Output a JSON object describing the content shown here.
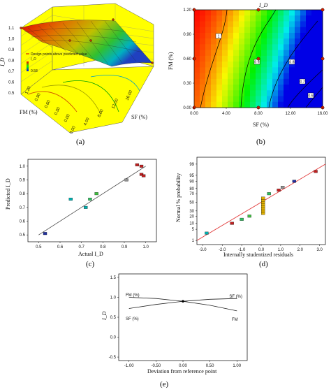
{
  "figure": {
    "captions": [
      "(a)",
      "(b)",
      "(c)",
      "(d)",
      "(e)"
    ]
  },
  "chart_data": [
    {
      "panel": "a",
      "type": "surface3d",
      "zlabel": "I_D",
      "xlabel": "SF (%)",
      "ylabel": "FM (%)",
      "x_ticks": [
        "0.00",
        "4.00",
        "8.00",
        "12.00",
        "16.00"
      ],
      "y_ticks": [
        "0.00",
        "0.30",
        "0.60",
        "0.90",
        "1.20"
      ],
      "z_ticks": [
        "0.5",
        "0.6",
        "0.7",
        "0.8",
        "0.9",
        "1.0",
        "1.1"
      ],
      "legend": [
        "Design points above predicted value",
        "I_D",
        "0.58"
      ],
      "colormap": [
        "#ff0000",
        "#ffa500",
        "#ffff00",
        "#00ff00",
        "#00ffff",
        "#0000ff"
      ]
    },
    {
      "panel": "b",
      "type": "heatmap",
      "title": "I_D",
      "xlabel": "SF (%)",
      "ylabel": "FM (%)",
      "x_ticks": [
        "0.00",
        "4.00",
        "8.00",
        "12.00",
        "16.00"
      ],
      "y_ticks": [
        "0.00",
        "0.30",
        "0.60",
        "0.90",
        "1.20"
      ],
      "xlim": [
        0,
        16
      ],
      "ylim": [
        0,
        1.2
      ],
      "contour_labels": [
        "1",
        "0.9",
        "0.8",
        "0.7",
        "0.6"
      ],
      "design_points": [
        {
          "x": 0,
          "y": 1.2
        },
        {
          "x": 8,
          "y": 1.2
        },
        {
          "x": 16,
          "y": 1.2
        },
        {
          "x": 0,
          "y": 0.6
        },
        {
          "x": 8,
          "y": 0.6
        },
        {
          "x": 16,
          "y": 0.6
        },
        {
          "x": 0,
          "y": 0
        },
        {
          "x": 8,
          "y": 0
        },
        {
          "x": 16,
          "y": 0
        }
      ]
    },
    {
      "panel": "c",
      "type": "scatter",
      "xlabel": "Actual I_D",
      "ylabel": "Predicted I_D",
      "x_ticks": [
        "0.5",
        "0.6",
        "0.7",
        "0.8",
        "0.9",
        "1.0"
      ],
      "y_ticks": [
        "0.5",
        "0.6",
        "0.7",
        "0.8",
        "0.9",
        "1.0"
      ],
      "xlim": [
        0.45,
        1.05
      ],
      "ylim": [
        0.45,
        1.05
      ],
      "points": [
        {
          "x": 0.53,
          "y": 0.51,
          "color": "#2030a0"
        },
        {
          "x": 0.65,
          "y": 0.76,
          "color": "#00b0b0"
        },
        {
          "x": 0.72,
          "y": 0.7,
          "color": "#00b0b0"
        },
        {
          "x": 0.74,
          "y": 0.76,
          "color": "#30c060"
        },
        {
          "x": 0.77,
          "y": 0.8,
          "color": "#40c040"
        },
        {
          "x": 0.91,
          "y": 0.9,
          "color": "#909090"
        },
        {
          "x": 0.96,
          "y": 1.01,
          "color": "#c02020"
        },
        {
          "x": 0.98,
          "y": 0.94,
          "color": "#c02020"
        },
        {
          "x": 0.98,
          "y": 1.0,
          "color": "#c02020"
        },
        {
          "x": 0.99,
          "y": 0.93,
          "color": "#c02020"
        }
      ],
      "fit_line": [
        [
          0.5,
          0.5
        ],
        [
          1.0,
          1.0
        ]
      ]
    },
    {
      "panel": "d",
      "type": "scatter",
      "xlabel": "Internally studentized residuals",
      "ylabel": "Normal % probability",
      "x_ticks": [
        "-3.0",
        "-2.0",
        "-1.0",
        "0.0",
        "1.0",
        "2.0",
        "3.0"
      ],
      "y_ticks": [
        "1",
        "5",
        "10",
        "20",
        "30",
        "50",
        "70",
        "80",
        "90",
        "95",
        "99"
      ],
      "xlim": [
        -3.3,
        3.3
      ],
      "points": [
        {
          "x": -2.8,
          "p": 3,
          "color": "#00b0b0"
        },
        {
          "x": -1.5,
          "p": 10,
          "color": "#c02020"
        },
        {
          "x": -1.0,
          "p": 15,
          "color": "#30c060"
        },
        {
          "x": -0.6,
          "p": 20,
          "color": "#40c040"
        },
        {
          "x": 0.1,
          "p": 25,
          "color": "#e0b000"
        },
        {
          "x": 0.1,
          "p": 30,
          "color": "#e0b000"
        },
        {
          "x": 0.1,
          "p": 35,
          "color": "#e0b000"
        },
        {
          "x": 0.1,
          "p": 40,
          "color": "#e0b000"
        },
        {
          "x": 0.1,
          "p": 45,
          "color": "#e0b000"
        },
        {
          "x": 0.1,
          "p": 50,
          "color": "#e0b000"
        },
        {
          "x": 0.1,
          "p": 55,
          "color": "#e0b000"
        },
        {
          "x": 0.1,
          "p": 60,
          "color": "#e0b000"
        },
        {
          "x": 0.4,
          "p": 70,
          "color": "#30c060"
        },
        {
          "x": 0.9,
          "p": 77,
          "color": "#c02020"
        },
        {
          "x": 1.1,
          "p": 82,
          "color": "#909090"
        },
        {
          "x": 1.7,
          "p": 90,
          "color": "#2030a0"
        },
        {
          "x": 2.8,
          "p": 97,
          "color": "#c02020"
        }
      ],
      "fit_line": [
        [
          -3.3,
          1
        ],
        [
          3.3,
          99
        ]
      ]
    },
    {
      "panel": "e",
      "type": "line",
      "xlabel": "Deviation from reference point",
      "ylabel": "I_D",
      "x_ticks": [
        "-1.00",
        "-0.50",
        "0.00",
        "0.50",
        "1.00"
      ],
      "y_ticks": [
        "-0.5",
        "0.0",
        "0.5",
        "1.0",
        "1.5"
      ],
      "xlim": [
        -1,
        1
      ],
      "ylim": [
        -0.5,
        1.5
      ],
      "series": [
        {
          "name": "FM (%)",
          "x": [
            -1,
            -0.5,
            0,
            0.5,
            1
          ],
          "values": [
            0.72,
            0.82,
            0.9,
            0.95,
            0.97
          ]
        },
        {
          "name": "SF (%)",
          "x": [
            -1,
            -0.5,
            0,
            0.5,
            1
          ],
          "values": [
            1.0,
            0.97,
            0.9,
            0.8,
            0.66
          ]
        }
      ],
      "labels": [
        "FM (%)",
        "SF (%)",
        "SF (%)",
        "FM"
      ]
    }
  ]
}
